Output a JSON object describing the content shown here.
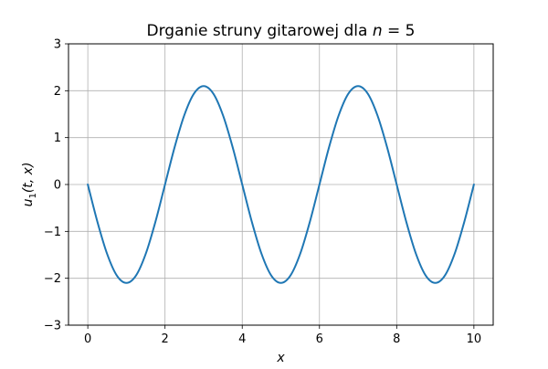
{
  "chart_data": {
    "type": "line",
    "title": "Drganie struny gitarowej dla n = 5",
    "title_parts": {
      "text": "Drganie struny gitarowej dla ",
      "var": "n",
      "eq": " = 5"
    },
    "xlabel": "x",
    "ylabel": "u1(t, x)",
    "ylabel_parts": {
      "u": "u",
      "sub": "1",
      "args": "(t, x)"
    },
    "xlim": [
      -0.5,
      10.5
    ],
    "ylim": [
      -3,
      3
    ],
    "xticks": [
      0,
      2,
      4,
      6,
      8,
      10
    ],
    "xtick_labels": [
      "0",
      "2",
      "4",
      "6",
      "8",
      "10"
    ],
    "yticks": [
      -3,
      -2,
      -1,
      0,
      1,
      2,
      3
    ],
    "ytick_labels": [
      "−3",
      "−2",
      "−1",
      "0",
      "1",
      "2",
      "3"
    ],
    "grid": true,
    "series": [
      {
        "color": "#1f77b4",
        "x": [
          0,
          0.25,
          0.5,
          0.75,
          1,
          1.25,
          1.5,
          1.75,
          2,
          2.25,
          2.5,
          2.75,
          3,
          3.25,
          3.5,
          3.75,
          4,
          4.25,
          4.5,
          4.75,
          5,
          5.25,
          5.5,
          5.75,
          6,
          6.25,
          6.5,
          6.75,
          7,
          7.25,
          7.5,
          7.75,
          8,
          8.25,
          8.5,
          8.75,
          9,
          9.25,
          9.5,
          9.75,
          10
        ],
        "y": [
          0,
          -0.8,
          -1.48,
          -1.94,
          -2.1,
          -1.94,
          -1.48,
          -0.8,
          0,
          0.8,
          1.48,
          1.94,
          2.1,
          1.94,
          1.48,
          0.8,
          0,
          -0.8,
          -1.48,
          -1.94,
          -2.1,
          -1.94,
          -1.48,
          -0.8,
          0,
          0.8,
          1.48,
          1.94,
          2.1,
          1.94,
          1.48,
          0.8,
          0,
          -0.8,
          -1.48,
          -1.94,
          -2.1,
          -1.94,
          -1.48,
          -0.8,
          0
        ]
      }
    ]
  }
}
